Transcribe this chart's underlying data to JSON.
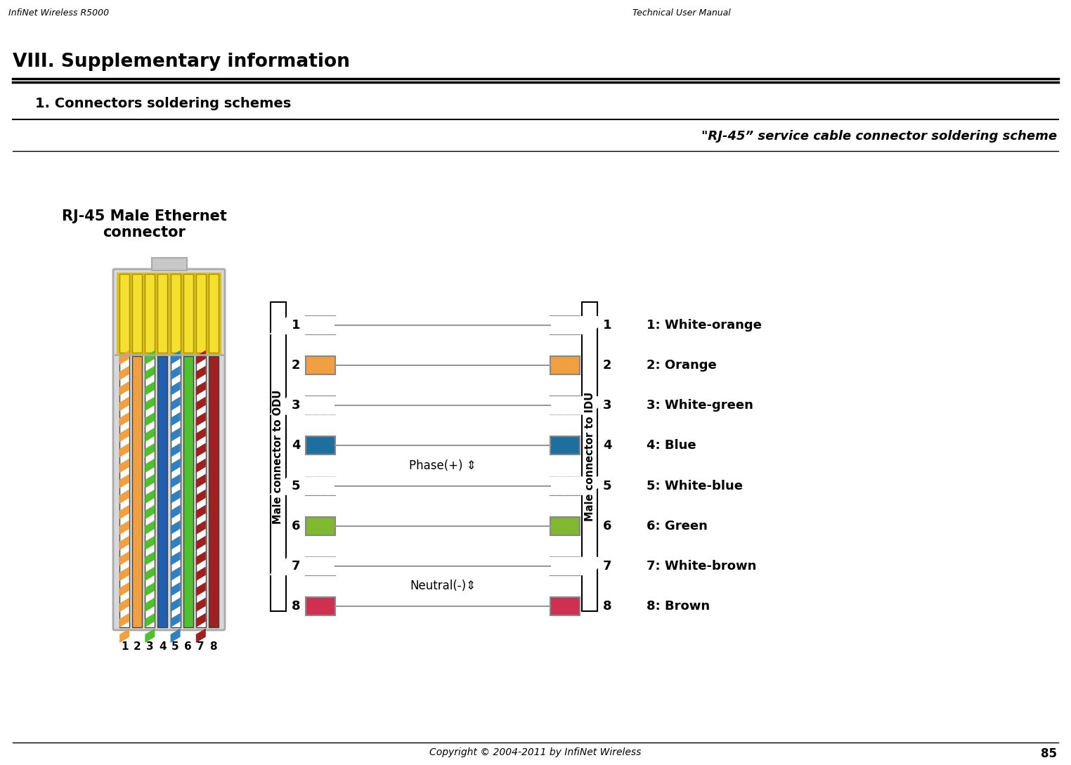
{
  "bg_color": "#ffffff",
  "header_left": "InfiNet Wireless R5000",
  "header_right": "Technical User Manual",
  "section_title": "VIII. Supplementary information",
  "subsection_title": "1. Connectors soldering schemes",
  "diagram_title": "\"RJ-45” service cable connector soldering scheme",
  "connector_label": "RJ-45 Male Ethernet\nconnector",
  "odu_label": "Male connector to ODU",
  "idu_label": "Male connector to IDU",
  "footer_text": "Copyright © 2004-2011 by InfiNet Wireless",
  "page_number": "85",
  "pin_colors": [
    [
      "#E07040",
      true
    ],
    [
      "#F0A040",
      false
    ],
    [
      "#80C040",
      true
    ],
    [
      "#1E6E9E",
      false
    ],
    [
      "#3070A0",
      true
    ],
    [
      "#80B830",
      false
    ],
    [
      "#D03050",
      true
    ],
    [
      "#D03050",
      false
    ]
  ],
  "wire_names": [
    "1: White-orange",
    "2: Orange",
    "3: White-green",
    "4: Blue",
    "5: White-blue",
    "6: Green",
    "7: White-brown",
    "8: Brown"
  ],
  "rj45_body_colors": [
    [
      "#F0A040",
      true
    ],
    [
      "#F0A040",
      false
    ],
    [
      "#50C030",
      true
    ],
    [
      "#2060B0",
      false
    ],
    [
      "#3080C0",
      true
    ],
    [
      "#50C030",
      false
    ],
    [
      "#A02020",
      true
    ],
    [
      "#A02020",
      false
    ]
  ],
  "phase_label": "Phase(+) ⇕",
  "neutral_label": "Neutral(-)⇕"
}
